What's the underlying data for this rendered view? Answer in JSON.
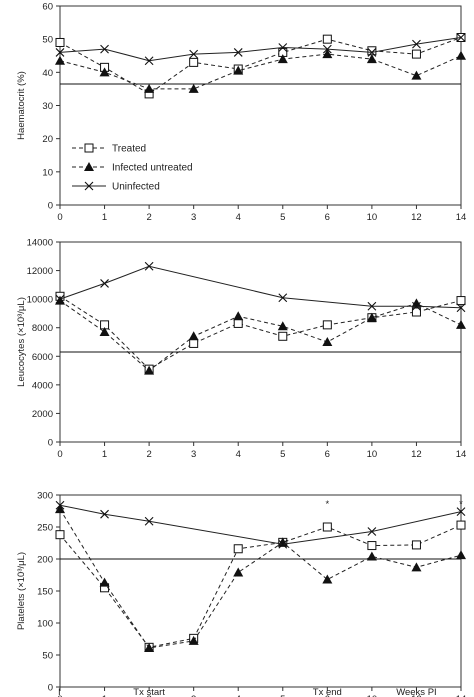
{
  "chart_data": [
    {
      "type": "line",
      "categories": [
        "0",
        "1",
        "2",
        "3",
        "4",
        "5",
        "6",
        "10",
        "12",
        "14"
      ],
      "ylabel": "Haematocrit (%)",
      "ylim": [
        0,
        60
      ],
      "yticks": [
        0,
        10,
        20,
        30,
        40,
        50,
        60
      ],
      "reference_line": 36.5,
      "legend": {
        "placement": "lower-left",
        "entries": [
          "Treated",
          "Infected untreated",
          "Uninfected"
        ]
      },
      "series": [
        {
          "name": "Treated",
          "marker": "square-open",
          "line": "dashed",
          "values": [
            49,
            41.5,
            33.5,
            43,
            41,
            46,
            50,
            46.5,
            45.5,
            50.5
          ]
        },
        {
          "name": "Infected untreated",
          "marker": "triangle-filled",
          "line": "dashed",
          "values": [
            43.5,
            40,
            35,
            35,
            40.5,
            44,
            45.5,
            44,
            39,
            45
          ]
        },
        {
          "name": "Uninfected",
          "marker": "x",
          "line": "solid",
          "values": [
            46,
            47,
            43.5,
            45.5,
            46,
            47.5,
            47,
            46,
            48.5,
            50.5
          ]
        }
      ],
      "annotations": []
    },
    {
      "type": "line",
      "categories": [
        "0",
        "1",
        "2",
        "3",
        "4",
        "5",
        "6",
        "10",
        "12",
        "14"
      ],
      "ylabel": "Leucocytes (×10³/μL)",
      "ylim": [
        0,
        14000
      ],
      "yticks": [
        0,
        2000,
        4000,
        6000,
        8000,
        10000,
        12000,
        14000
      ],
      "reference_line": 6300,
      "series": [
        {
          "name": "Treated",
          "marker": "square-open",
          "line": "dashed",
          "values": [
            10200,
            8200,
            5100,
            6900,
            8300,
            7400,
            8200,
            8700,
            9100,
            9900
          ]
        },
        {
          "name": "Infected untreated",
          "marker": "triangle-filled",
          "line": "dashed",
          "values": [
            9900,
            7700,
            5000,
            7400,
            8800,
            8100,
            7000,
            8700,
            9700,
            8200
          ]
        },
        {
          "name": "Uninfected",
          "marker": "x",
          "line": "solid",
          "values": [
            10000,
            11100,
            12300,
            null,
            null,
            10100,
            null,
            9500,
            9500,
            9400
          ]
        }
      ],
      "annotations": []
    },
    {
      "type": "line",
      "categories": [
        "0",
        "1",
        "2",
        "3",
        "4",
        "5",
        "6",
        "10",
        "12",
        "14"
      ],
      "ylabel": "Platelets (×10³/μL)",
      "ylim": [
        0,
        300
      ],
      "yticks": [
        0,
        50,
        100,
        150,
        200,
        250,
        300
      ],
      "reference_line": 200,
      "series": [
        {
          "name": "Treated",
          "marker": "square-open",
          "line": "dashed",
          "values": [
            238,
            155,
            62,
            76,
            216,
            226,
            250,
            221,
            222,
            253
          ]
        },
        {
          "name": "Infected untreated",
          "marker": "triangle-filled",
          "line": "dashed",
          "values": [
            278,
            163,
            61,
            72,
            179,
            226,
            168,
            204,
            187,
            206
          ]
        },
        {
          "name": "Uninfected",
          "marker": "x",
          "line": "solid",
          "values": [
            284,
            270,
            259,
            null,
            null,
            223,
            null,
            243,
            null,
            274
          ]
        }
      ],
      "annotations": [
        {
          "x": "6",
          "text": "*"
        },
        {
          "x": "14",
          "text": "*"
        }
      ],
      "bottom_labels": [
        {
          "x": "0",
          "text": "I"
        },
        {
          "x": "2",
          "text": "Tx start"
        },
        {
          "x": "6",
          "text": "Tx end"
        },
        {
          "x": "12",
          "text": "Weeks PI"
        }
      ]
    }
  ]
}
